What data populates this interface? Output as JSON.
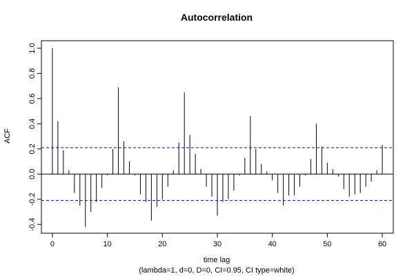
{
  "chart_data": {
    "type": "bar",
    "title": "Autocorrelation",
    "xlabel": "time lag",
    "subtitle": "(lambda=1, d=0, D=0, CI=0.95, CI type=white)",
    "ylabel": "ACF",
    "xlim": [
      -2,
      62
    ],
    "ylim": [
      -0.47,
      1.06
    ],
    "x_ticks": [
      0,
      10,
      20,
      30,
      40,
      50,
      60
    ],
    "y_ticks": [
      -0.4,
      -0.2,
      0.0,
      0.2,
      0.4,
      0.6,
      0.8,
      1.0
    ],
    "y_tick_labels": [
      "-0.4",
      "-0.2",
      "0.0",
      "0.2",
      "0.4",
      "0.6",
      "0.8",
      "1.0"
    ],
    "ci": 0.21,
    "lags": [
      0,
      1,
      2,
      3,
      4,
      5,
      6,
      7,
      8,
      9,
      10,
      11,
      12,
      13,
      14,
      15,
      16,
      17,
      18,
      19,
      20,
      21,
      22,
      23,
      24,
      25,
      26,
      27,
      28,
      29,
      30,
      31,
      32,
      33,
      34,
      35,
      36,
      37,
      38,
      39,
      40,
      41,
      42,
      43,
      44,
      45,
      46,
      47,
      48,
      49,
      50,
      51,
      52,
      53,
      54,
      55,
      56,
      57,
      58,
      59,
      60
    ],
    "values": [
      1.0,
      0.42,
      0.19,
      0.03,
      -0.15,
      -0.25,
      -0.42,
      -0.3,
      -0.22,
      -0.11,
      -0.01,
      0.2,
      0.69,
      0.26,
      0.1,
      -0.01,
      -0.16,
      -0.22,
      -0.37,
      -0.26,
      -0.2,
      -0.1,
      0.03,
      0.25,
      0.65,
      0.31,
      0.16,
      0.04,
      -0.1,
      -0.18,
      -0.33,
      -0.22,
      -0.2,
      -0.13,
      -0.01,
      0.13,
      0.46,
      0.2,
      0.08,
      0.02,
      -0.05,
      -0.15,
      -0.25,
      -0.17,
      -0.17,
      -0.1,
      -0.01,
      0.12,
      0.4,
      0.22,
      0.09,
      0.04,
      -0.02,
      -0.12,
      -0.18,
      -0.16,
      -0.15,
      -0.1,
      -0.06,
      0.03,
      0.23
    ],
    "colors": {
      "line": "#000000",
      "ci": "#0000ff",
      "zero": "#000000"
    }
  }
}
